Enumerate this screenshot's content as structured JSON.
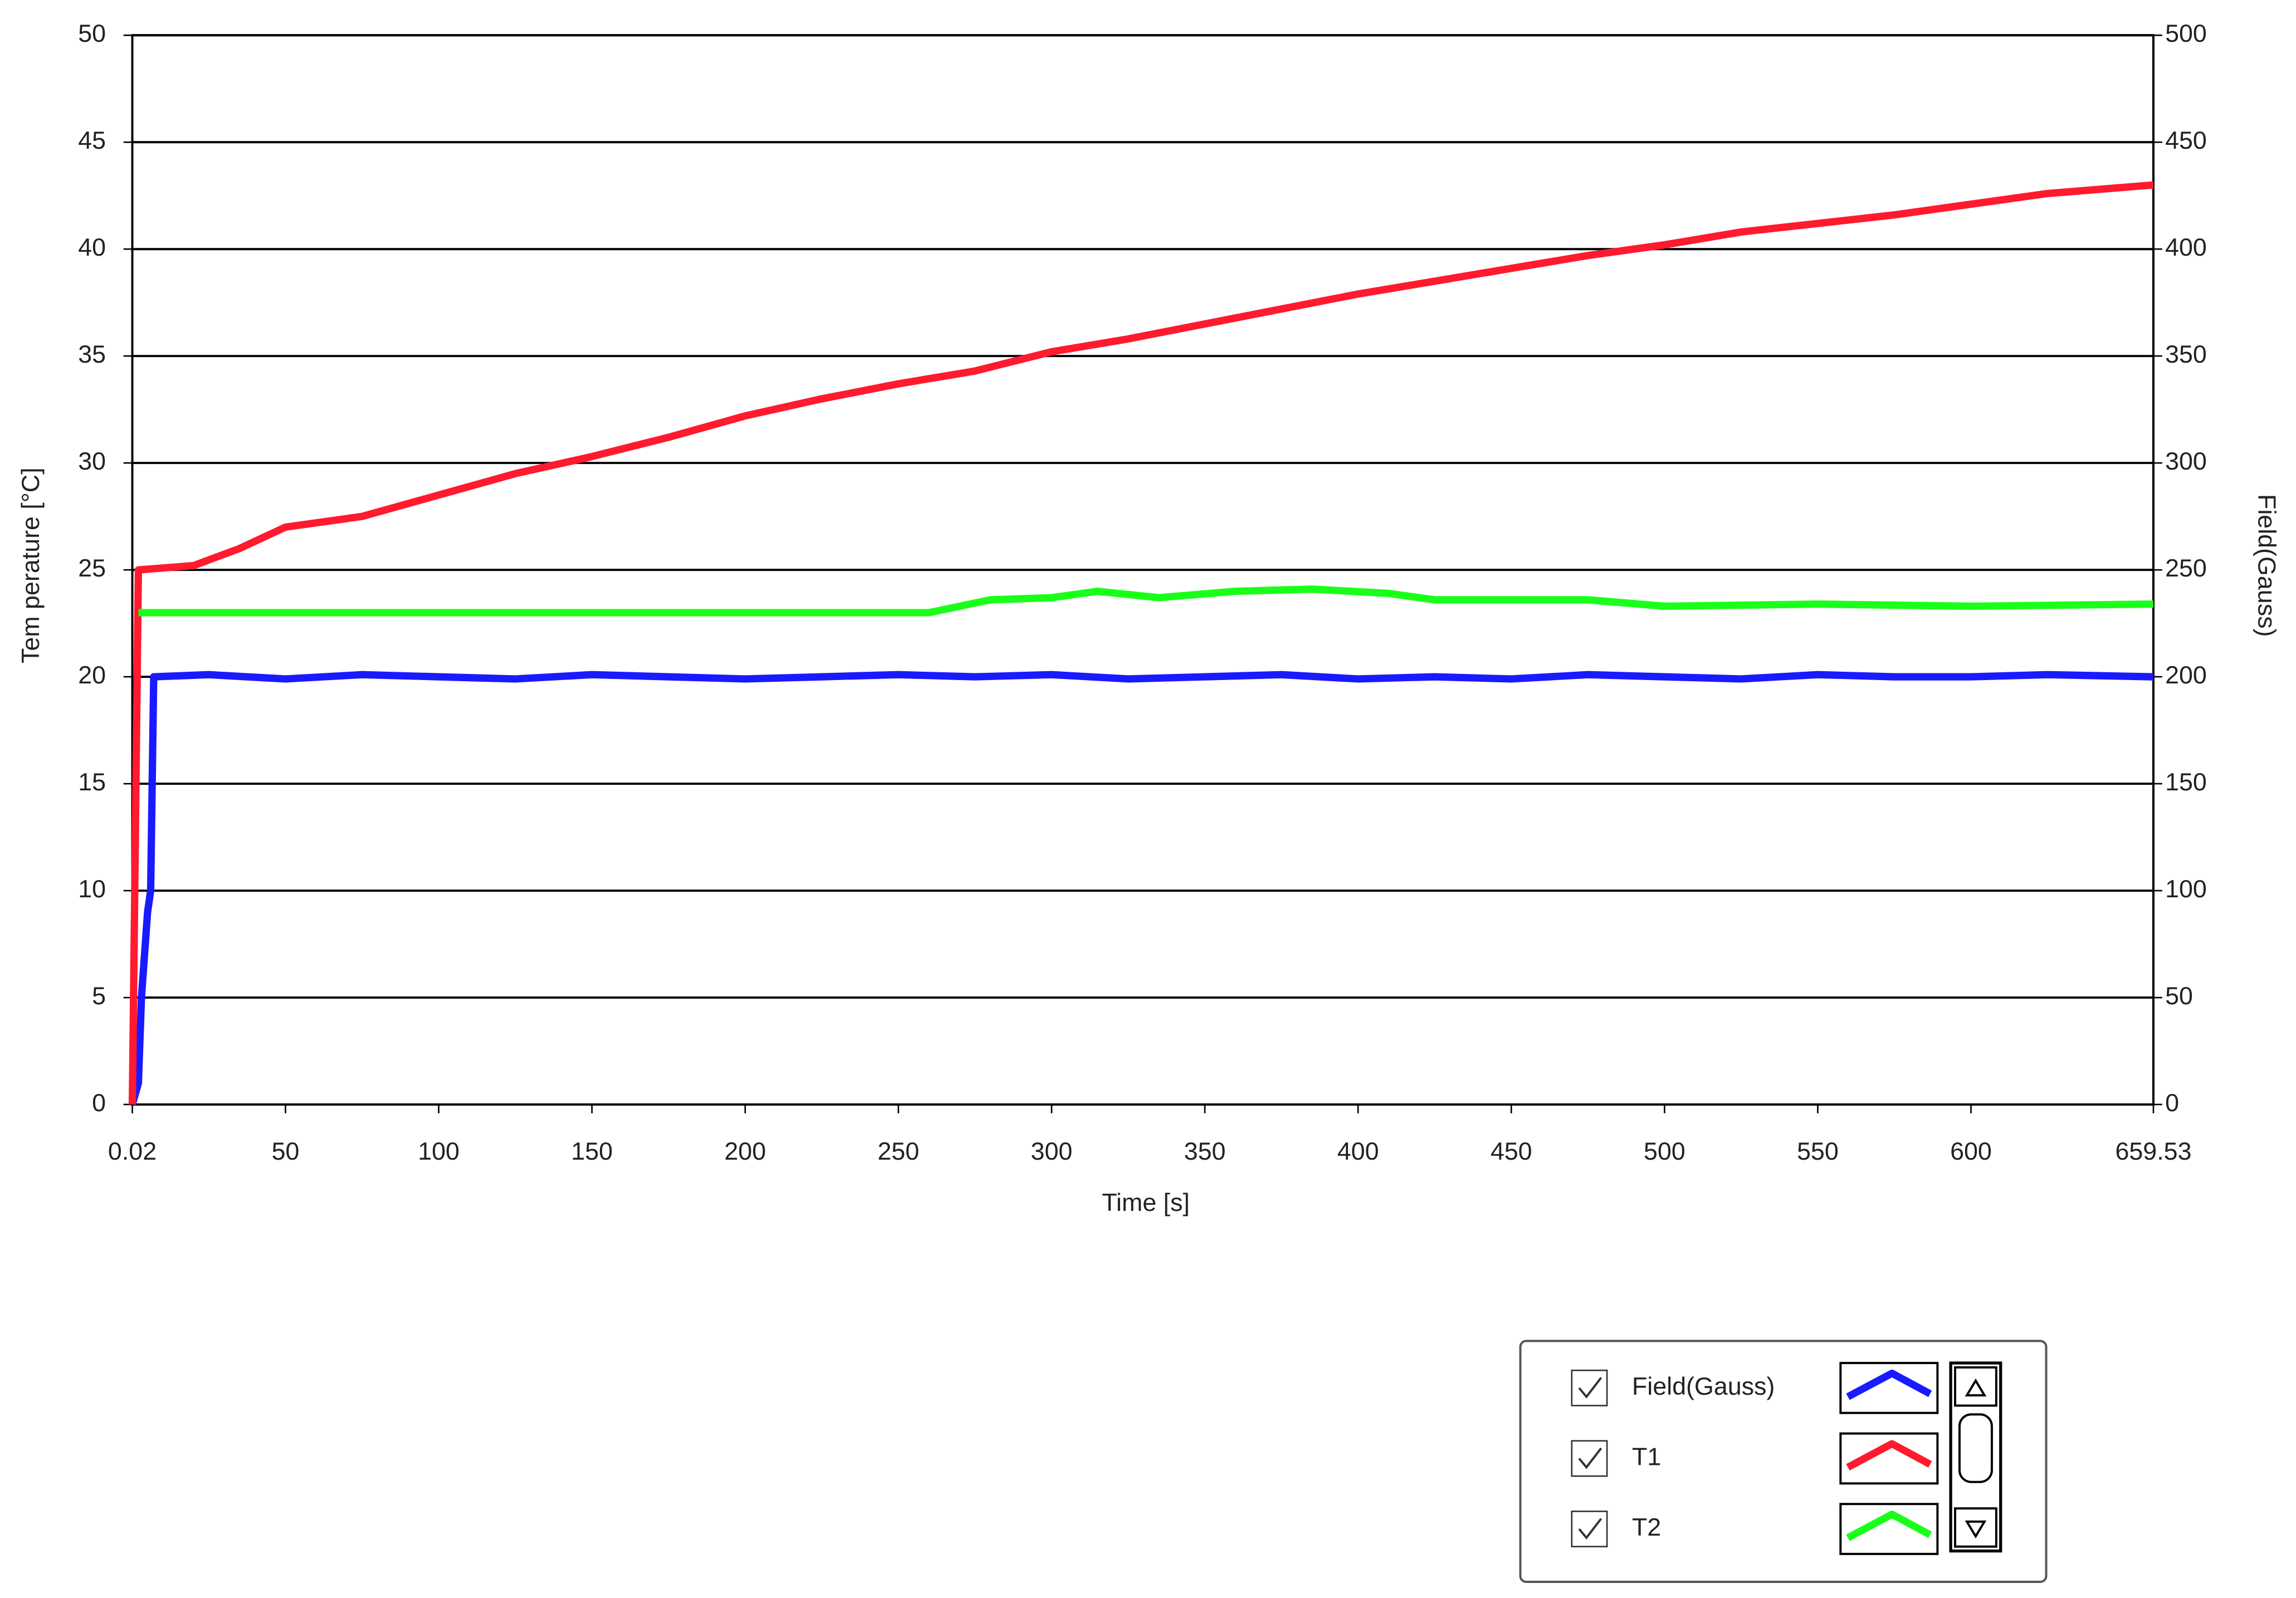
{
  "chart_data": {
    "type": "line",
    "x_label": "Time [s]",
    "y_label": "Tem perature [°C]",
    "y2_label": "Field(Gauss)",
    "xlim": [
      0.02,
      659.53
    ],
    "xticks": [
      0.02,
      50,
      100,
      150,
      200,
      250,
      300,
      350,
      400,
      450,
      500,
      550,
      600,
      659.53
    ],
    "ylim": [
      0,
      50
    ],
    "yticks": [
      0,
      5,
      10,
      15,
      20,
      25,
      30,
      35,
      40,
      45,
      50
    ],
    "y2lim": [
      0,
      500
    ],
    "y2ticks": [
      0,
      50,
      100,
      150,
      200,
      250,
      300,
      350,
      400,
      450,
      500
    ],
    "grid": true,
    "legend": "bottom-right",
    "series": [
      {
        "name": "Field(Gauss)",
        "color": "#1a1aff",
        "axis": "y2",
        "x": [
          0.02,
          2,
          3,
          5,
          6,
          7,
          25,
          50,
          75,
          100,
          125,
          150,
          175,
          200,
          225,
          250,
          275,
          300,
          325,
          350,
          375,
          400,
          425,
          450,
          475,
          500,
          525,
          550,
          575,
          600,
          625,
          659.53
        ],
        "values": [
          0,
          10,
          50,
          90,
          100,
          200,
          201,
          199,
          201,
          200,
          199,
          201,
          200,
          199,
          200,
          201,
          200,
          201,
          199,
          200,
          201,
          199,
          200,
          199,
          201,
          200,
          199,
          201,
          200,
          200,
          201,
          200
        ]
      },
      {
        "name": "T1",
        "color": "#ff1a2e",
        "x": [
          0.02,
          2,
          20,
          35,
          50,
          75,
          100,
          125,
          150,
          175,
          200,
          225,
          250,
          275,
          300,
          325,
          350,
          375,
          400,
          425,
          450,
          475,
          500,
          525,
          550,
          575,
          600,
          625,
          659.53
        ],
        "values": [
          0,
          25,
          25.2,
          26,
          27,
          27.5,
          28.5,
          29.5,
          30.3,
          31.2,
          32.2,
          33,
          33.7,
          34.3,
          35.2,
          35.8,
          36.5,
          37.2,
          37.9,
          38.5,
          39.1,
          39.7,
          40.2,
          40.8,
          41.2,
          41.6,
          42.1,
          42.6,
          43
        ]
      },
      {
        "name": "T2",
        "color": "#1aff1a",
        "x": [
          2,
          50,
          260,
          280,
          300,
          315,
          335,
          360,
          385,
          410,
          425,
          475,
          500,
          550,
          600,
          659.53
        ],
        "values": [
          23,
          23,
          23,
          23.6,
          23.7,
          24,
          23.7,
          24,
          24.1,
          23.9,
          23.6,
          23.6,
          23.3,
          23.4,
          23.3,
          23.4
        ]
      }
    ]
  }
}
